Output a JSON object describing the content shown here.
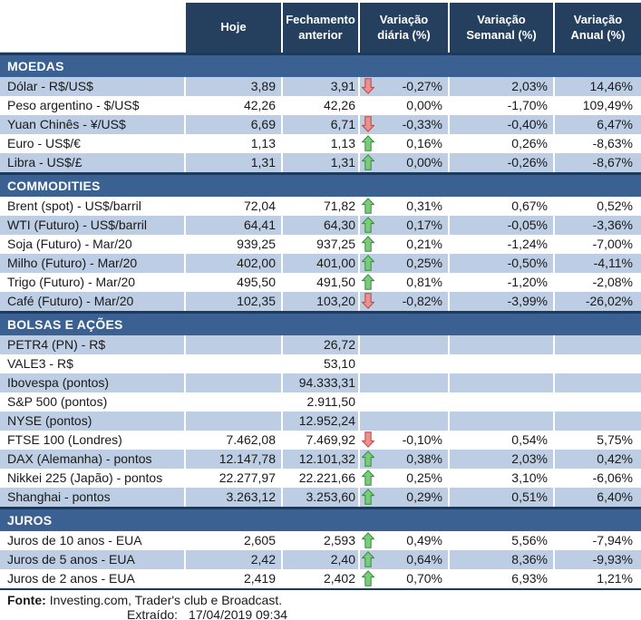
{
  "colors": {
    "header_bg": "#24405E",
    "band_bg": "#3A6191",
    "band_top_border": "#1B3A5E",
    "row_alt_bg": "#BCCDE4",
    "arrow_up_fill": "#7FC97F",
    "arrow_up_stroke": "#2F8F35",
    "arrow_down_fill": "#E8918F",
    "arrow_down_stroke": "#BA4744"
  },
  "chart_data": {
    "type": "table",
    "columns": [
      "Hoje",
      "Fechamento anterior",
      "Variação diária (%)",
      "Variação Semanal (%)",
      "Variação Anual (%)"
    ],
    "sections": [
      {
        "title": "MOEDAS",
        "rows": [
          {
            "label": "Dólar - R$/US$",
            "hoje": "3,89",
            "fechamento": "3,91",
            "arrow": "down",
            "var_diaria": "-0,27%",
            "var_semanal": "2,03%",
            "var_anual": "14,46%",
            "shade": "alt"
          },
          {
            "label": "Peso argentino - $/US$",
            "hoje": "42,26",
            "fechamento": "42,26",
            "arrow": "",
            "var_diaria": "0,00%",
            "var_semanal": "-1,70%",
            "var_anual": "109,49%",
            "shade": "plain"
          },
          {
            "label": "Yuan Chinês - ¥/US$",
            "hoje": "6,69",
            "fechamento": "6,71",
            "arrow": "down",
            "var_diaria": "-0,33%",
            "var_semanal": "-0,40%",
            "var_anual": "6,47%",
            "shade": "alt"
          },
          {
            "label": "Euro - US$/€",
            "hoje": "1,13",
            "fechamento": "1,13",
            "arrow": "up",
            "var_diaria": "0,16%",
            "var_semanal": "0,26%",
            "var_anual": "-8,63%",
            "shade": "plain"
          },
          {
            "label": "Libra - US$/£",
            "hoje": "1,31",
            "fechamento": "1,31",
            "arrow": "up",
            "var_diaria": "0,00%",
            "var_semanal": "-0,26%",
            "var_anual": "-8,67%",
            "shade": "alt"
          }
        ]
      },
      {
        "title": "COMMODITIES",
        "rows": [
          {
            "label": "Brent (spot) - US$/barril",
            "hoje": "72,04",
            "fechamento": "71,82",
            "arrow": "up",
            "var_diaria": "0,31%",
            "var_semanal": "0,67%",
            "var_anual": "0,52%",
            "shade": "plain"
          },
          {
            "label": "WTI (Futuro) - US$/barril",
            "hoje": "64,41",
            "fechamento": "64,30",
            "arrow": "up",
            "var_diaria": "0,17%",
            "var_semanal": "-0,05%",
            "var_anual": "-3,36%",
            "shade": "alt"
          },
          {
            "label": "Soja (Futuro) - Mar/20",
            "hoje": "939,25",
            "fechamento": "937,25",
            "arrow": "up",
            "var_diaria": "0,21%",
            "var_semanal": "-1,24%",
            "var_anual": "-7,00%",
            "shade": "plain"
          },
          {
            "label": "Milho (Futuro) - Mar/20",
            "hoje": "402,00",
            "fechamento": "401,00",
            "arrow": "up",
            "var_diaria": "0,25%",
            "var_semanal": "-0,50%",
            "var_anual": "-4,11%",
            "shade": "alt"
          },
          {
            "label": "Trigo (Futuro) - Mar/20",
            "hoje": "495,50",
            "fechamento": "491,50",
            "arrow": "up",
            "var_diaria": "0,81%",
            "var_semanal": "-1,20%",
            "var_anual": "-2,08%",
            "shade": "plain"
          },
          {
            "label": "Café (Futuro) - Mar/20",
            "hoje": "102,35",
            "fechamento": "103,20",
            "arrow": "down",
            "var_diaria": "-0,82%",
            "var_semanal": "-3,99%",
            "var_anual": "-26,02%",
            "shade": "alt"
          }
        ]
      },
      {
        "title": "BOLSAS E AÇÕES",
        "rows": [
          {
            "label": "PETR4 (PN) - R$",
            "hoje": "",
            "fechamento": "26,72",
            "arrow": "",
            "var_diaria": "",
            "var_semanal": "",
            "var_anual": "",
            "shade": "alt"
          },
          {
            "label": "VALE3 - R$",
            "hoje": "",
            "fechamento": "53,10",
            "arrow": "",
            "var_diaria": "",
            "var_semanal": "",
            "var_anual": "",
            "shade": "plain"
          },
          {
            "label": "Ibovespa (pontos)",
            "hoje": "",
            "fechamento": "94.333,31",
            "arrow": "",
            "var_diaria": "",
            "var_semanal": "",
            "var_anual": "",
            "shade": "alt"
          },
          {
            "label": "S&P 500 (pontos)",
            "hoje": "",
            "fechamento": "2.911,50",
            "arrow": "",
            "var_diaria": "",
            "var_semanal": "",
            "var_anual": "",
            "shade": "plain"
          },
          {
            "label": "NYSE (pontos)",
            "hoje": "",
            "fechamento": "12.952,24",
            "arrow": "",
            "var_diaria": "",
            "var_semanal": "",
            "var_anual": "",
            "shade": "alt"
          },
          {
            "label": "FTSE 100 (Londres)",
            "hoje": "7.462,08",
            "fechamento": "7.469,92",
            "arrow": "down",
            "var_diaria": "-0,10%",
            "var_semanal": "0,54%",
            "var_anual": "5,75%",
            "shade": "plain"
          },
          {
            "label": "DAX (Alemanha) - pontos",
            "hoje": "12.147,78",
            "fechamento": "12.101,32",
            "arrow": "up",
            "var_diaria": "0,38%",
            "var_semanal": "2,03%",
            "var_anual": "0,42%",
            "shade": "alt"
          },
          {
            "label": "Nikkei 225 (Japão) - pontos",
            "hoje": "22.277,97",
            "fechamento": "22.221,66",
            "arrow": "up",
            "var_diaria": "0,25%",
            "var_semanal": "3,10%",
            "var_anual": "-6,06%",
            "shade": "plain"
          },
          {
            "label": "Shanghai - pontos",
            "hoje": "3.263,12",
            "fechamento": "3.253,60",
            "arrow": "up",
            "var_diaria": "0,29%",
            "var_semanal": "0,51%",
            "var_anual": "6,40%",
            "shade": "alt"
          }
        ]
      },
      {
        "title": "JUROS",
        "rows": [
          {
            "label": "Juros de 10 anos - EUA",
            "hoje": "2,605",
            "fechamento": "2,593",
            "arrow": "up",
            "var_diaria": "0,49%",
            "var_semanal": "5,56%",
            "var_anual": "-7,94%",
            "shade": "plain"
          },
          {
            "label": "Juros de 5 anos - EUA",
            "hoje": "2,42",
            "fechamento": "2,40",
            "arrow": "up",
            "var_diaria": "0,64%",
            "var_semanal": "8,36%",
            "var_anual": "-9,93%",
            "shade": "alt"
          },
          {
            "label": "Juros de 2 anos - EUA",
            "hoje": "2,419",
            "fechamento": "2,402",
            "arrow": "up",
            "var_diaria": "0,70%",
            "var_semanal": "6,93%",
            "var_anual": "1,21%",
            "shade": "plain"
          }
        ]
      }
    ]
  },
  "footer": {
    "fonte_label": "Fonte:",
    "fonte_text": "Investing.com, Trader's club e Broadcast.",
    "extraido_label": "Extraído:",
    "extraido_value": "17/04/2019 09:34"
  }
}
